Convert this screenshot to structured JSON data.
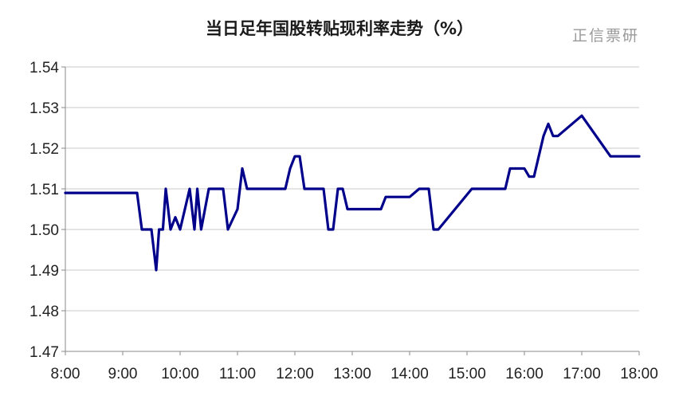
{
  "title": "当日足年国股转贴现利率走势（%）",
  "watermark": "正信票研",
  "colors": {
    "line": "#00008B",
    "grid": "#c8c8c8",
    "axis": "#888888"
  },
  "chart_data": {
    "type": "line",
    "title": "当日足年国股转贴现利率走势（%）",
    "xlabel": "",
    "ylabel": "",
    "x_ticks": [
      "8:00",
      "9:00",
      "10:00",
      "11:00",
      "12:00",
      "13:00",
      "14:00",
      "15:00",
      "16:00",
      "17:00",
      "18:00"
    ],
    "y_ticks": [
      "1.47",
      "1.48",
      "1.49",
      "1.50",
      "1.51",
      "1.52",
      "1.53",
      "1.54"
    ],
    "ylim": [
      1.47,
      1.54
    ],
    "xlim": [
      "8:00",
      "18:00"
    ],
    "grid": true,
    "legend": "none",
    "series": [
      {
        "x": [
          "8:00",
          "9:00",
          "9:15",
          "9:20",
          "9:30",
          "9:35",
          "9:38",
          "9:42",
          "9:45",
          "9:50",
          "9:55",
          "10:00",
          "10:05",
          "10:10",
          "10:15",
          "10:18",
          "10:22",
          "10:26",
          "10:30",
          "10:35",
          "10:40",
          "10:45",
          "10:50",
          "11:00",
          "11:05",
          "11:10",
          "11:15",
          "11:20",
          "11:25",
          "11:50",
          "11:55",
          "12:00",
          "12:05",
          "12:10",
          "12:30",
          "12:35",
          "12:40",
          "12:45",
          "12:50",
          "12:55",
          "13:00",
          "13:30",
          "13:35",
          "13:55",
          "14:00",
          "14:10",
          "14:15",
          "14:20",
          "14:25",
          "14:30",
          "15:05",
          "15:10",
          "15:40",
          "15:45",
          "15:55",
          "16:00",
          "16:05",
          "16:10",
          "16:15",
          "16:20",
          "16:25",
          "16:30",
          "16:35",
          "17:00",
          "17:30",
          "18:00"
        ],
        "values": [
          1.509,
          1.509,
          1.509,
          1.5,
          1.5,
          1.49,
          1.5,
          1.5,
          1.51,
          1.5,
          1.503,
          1.5,
          1.505,
          1.51,
          1.5,
          1.51,
          1.5,
          1.505,
          1.51,
          1.51,
          1.51,
          1.51,
          1.5,
          1.505,
          1.515,
          1.51,
          1.51,
          1.51,
          1.51,
          1.51,
          1.515,
          1.518,
          1.518,
          1.51,
          1.51,
          1.5,
          1.5,
          1.51,
          1.51,
          1.505,
          1.505,
          1.505,
          1.508,
          1.508,
          1.508,
          1.51,
          1.51,
          1.51,
          1.5,
          1.5,
          1.51,
          1.51,
          1.51,
          1.515,
          1.515,
          1.515,
          1.513,
          1.513,
          1.518,
          1.523,
          1.526,
          1.523,
          1.523,
          1.528,
          1.518,
          1.518
        ]
      }
    ]
  }
}
